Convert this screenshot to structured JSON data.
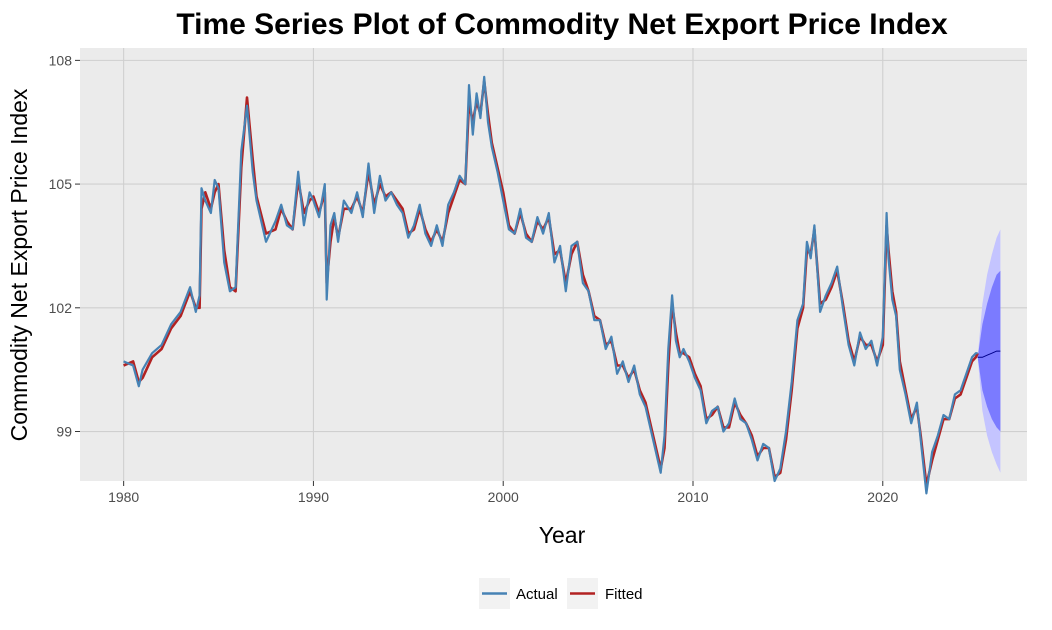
{
  "chart_data": {
    "type": "line",
    "title": "Time Series Plot of Commodity Net Export Price Index",
    "xlabel": "Year",
    "ylabel": "Commodity Net Export Price Index",
    "xlim": [
      1977.7,
      2027.6
    ],
    "ylim": [
      97.8,
      108.3
    ],
    "x_ticks": [
      1980,
      1990,
      2000,
      2010,
      2020
    ],
    "y_ticks": [
      99,
      102,
      105,
      108
    ],
    "grid": true,
    "legend": {
      "position": "bottom",
      "entries": [
        "Actual",
        "Fitted"
      ]
    },
    "colors": {
      "actual": "#4682b4",
      "fitted": "#b22222",
      "forecast_line": "#00008b",
      "band_inner": "#7b7bff",
      "band_outer": "#c4c4ff",
      "panel": "#ebebeb"
    },
    "series": [
      {
        "name": "Actual",
        "x": [
          1980.0,
          1980.5,
          1980.8,
          1981.0,
          1981.5,
          1982.0,
          1982.5,
          1983.0,
          1983.5,
          1983.8,
          1984.0,
          1984.1,
          1984.3,
          1984.6,
          1984.8,
          1985.0,
          1985.3,
          1985.6,
          1985.9,
          1986.2,
          1986.5,
          1986.8,
          1987.0,
          1987.5,
          1988.0,
          1988.3,
          1988.6,
          1988.9,
          1989.2,
          1989.5,
          1989.8,
          1990.0,
          1990.3,
          1990.6,
          1990.7,
          1990.9,
          1991.1,
          1991.3,
          1991.6,
          1992.0,
          1992.3,
          1992.6,
          1992.9,
          1993.2,
          1993.5,
          1993.8,
          1994.1,
          1994.4,
          1994.7,
          1995.0,
          1995.3,
          1995.6,
          1995.9,
          1996.2,
          1996.5,
          1996.8,
          1997.1,
          1997.4,
          1997.7,
          1998.0,
          1998.2,
          1998.4,
          1998.6,
          1998.8,
          1999.0,
          1999.2,
          1999.4,
          1999.7,
          2000.0,
          2000.3,
          2000.6,
          2000.9,
          2001.2,
          2001.5,
          2001.8,
          2002.1,
          2002.4,
          2002.7,
          2003.0,
          2003.3,
          2003.6,
          2003.9,
          2004.2,
          2004.5,
          2004.8,
          2005.1,
          2005.4,
          2005.7,
          2006.0,
          2006.3,
          2006.6,
          2006.9,
          2007.2,
          2007.5,
          2007.8,
          2008.1,
          2008.3,
          2008.5,
          2008.7,
          2008.9,
          2009.1,
          2009.3,
          2009.5,
          2009.8,
          2010.1,
          2010.4,
          2010.7,
          2011.0,
          2011.3,
          2011.6,
          2011.9,
          2012.2,
          2012.5,
          2012.8,
          2013.1,
          2013.4,
          2013.7,
          2014.0,
          2014.3,
          2014.6,
          2014.9,
          2015.2,
          2015.5,
          2015.8,
          2016.0,
          2016.2,
          2016.4,
          2016.7,
          2017.0,
          2017.3,
          2017.6,
          2017.9,
          2018.2,
          2018.5,
          2018.8,
          2019.1,
          2019.4,
          2019.7,
          2020.0,
          2020.2,
          2020.3,
          2020.5,
          2020.7,
          2020.9,
          2021.2,
          2021.5,
          2021.8,
          2022.0,
          2022.3,
          2022.6,
          2022.9,
          2023.2,
          2023.5,
          2023.8,
          2024.1,
          2024.4,
          2024.7,
          2024.9,
          2025.0
        ],
        "y": [
          100.7,
          100.6,
          100.1,
          100.5,
          100.9,
          101.1,
          101.6,
          101.9,
          102.5,
          101.9,
          102.3,
          104.9,
          104.6,
          104.3,
          105.1,
          104.9,
          103.1,
          102.4,
          102.5,
          105.8,
          106.9,
          105.3,
          104.6,
          103.6,
          104.1,
          104.5,
          104.0,
          103.9,
          105.3,
          104.0,
          104.8,
          104.6,
          104.2,
          105.0,
          102.2,
          104.0,
          104.3,
          103.6,
          104.6,
          104.3,
          104.8,
          104.2,
          105.5,
          104.3,
          105.2,
          104.6,
          104.8,
          104.5,
          104.3,
          103.7,
          104.0,
          104.5,
          103.8,
          103.5,
          104.0,
          103.5,
          104.5,
          104.8,
          105.2,
          105.0,
          107.4,
          106.2,
          107.2,
          106.6,
          107.6,
          106.5,
          105.9,
          105.3,
          104.6,
          103.9,
          103.8,
          104.4,
          103.7,
          103.6,
          104.2,
          103.8,
          104.3,
          103.1,
          103.5,
          102.4,
          103.5,
          103.6,
          102.6,
          102.4,
          101.7,
          101.7,
          101.0,
          101.3,
          100.4,
          100.7,
          100.2,
          100.6,
          99.9,
          99.6,
          99.0,
          98.4,
          98.0,
          98.9,
          101.0,
          102.3,
          101.2,
          100.8,
          101.0,
          100.7,
          100.3,
          100.0,
          99.2,
          99.5,
          99.6,
          99.0,
          99.2,
          99.8,
          99.3,
          99.2,
          98.8,
          98.3,
          98.7,
          98.6,
          97.8,
          98.1,
          99.0,
          100.2,
          101.7,
          102.1,
          103.6,
          103.2,
          104.0,
          101.9,
          102.3,
          102.6,
          103.0,
          102.0,
          101.1,
          100.6,
          101.4,
          101.0,
          101.2,
          100.6,
          101.3,
          104.3,
          103.2,
          102.2,
          101.8,
          100.5,
          99.9,
          99.2,
          99.7,
          98.8,
          97.5,
          98.5,
          98.9,
          99.4,
          99.3,
          99.9,
          100.0,
          100.4,
          100.8,
          100.9,
          100.9
        ]
      },
      {
        "name": "Fitted",
        "x": [
          1980.0,
          1980.5,
          1980.8,
          1981.0,
          1981.5,
          1982.0,
          1982.5,
          1983.0,
          1983.5,
          1983.8,
          1984.0,
          1984.1,
          1984.3,
          1984.6,
          1984.8,
          1985.0,
          1985.3,
          1985.6,
          1985.9,
          1986.2,
          1986.5,
          1986.8,
          1987.0,
          1987.5,
          1988.0,
          1988.3,
          1988.6,
          1988.9,
          1989.2,
          1989.5,
          1989.8,
          1990.0,
          1990.3,
          1990.6,
          1990.7,
          1990.9,
          1991.1,
          1991.3,
          1991.6,
          1992.0,
          1992.3,
          1992.6,
          1992.9,
          1993.2,
          1993.5,
          1993.8,
          1994.1,
          1994.4,
          1994.7,
          1995.0,
          1995.3,
          1995.6,
          1995.9,
          1996.2,
          1996.5,
          1996.8,
          1997.1,
          1997.4,
          1997.7,
          1998.0,
          1998.2,
          1998.4,
          1998.6,
          1998.8,
          1999.0,
          1999.2,
          1999.4,
          1999.7,
          2000.0,
          2000.3,
          2000.6,
          2000.9,
          2001.2,
          2001.5,
          2001.8,
          2002.1,
          2002.4,
          2002.7,
          2003.0,
          2003.3,
          2003.6,
          2003.9,
          2004.2,
          2004.5,
          2004.8,
          2005.1,
          2005.4,
          2005.7,
          2006.0,
          2006.3,
          2006.6,
          2006.9,
          2007.2,
          2007.5,
          2007.8,
          2008.1,
          2008.3,
          2008.5,
          2008.7,
          2008.9,
          2009.1,
          2009.3,
          2009.5,
          2009.8,
          2010.1,
          2010.4,
          2010.7,
          2011.0,
          2011.3,
          2011.6,
          2011.9,
          2012.2,
          2012.5,
          2012.8,
          2013.1,
          2013.4,
          2013.7,
          2014.0,
          2014.3,
          2014.6,
          2014.9,
          2015.2,
          2015.5,
          2015.8,
          2016.0,
          2016.2,
          2016.4,
          2016.7,
          2017.0,
          2017.3,
          2017.6,
          2017.9,
          2018.2,
          2018.5,
          2018.8,
          2019.1,
          2019.4,
          2019.7,
          2020.0,
          2020.2,
          2020.3,
          2020.5,
          2020.7,
          2020.9,
          2021.2,
          2021.5,
          2021.8,
          2022.0,
          2022.3,
          2022.6,
          2022.9,
          2023.2,
          2023.5,
          2023.8,
          2024.1,
          2024.4,
          2024.7,
          2024.9,
          2025.0
        ],
        "y": [
          100.6,
          100.7,
          100.2,
          100.3,
          100.8,
          101.0,
          101.5,
          101.8,
          102.4,
          102.0,
          102.0,
          104.4,
          104.8,
          104.4,
          104.8,
          105.0,
          103.4,
          102.5,
          102.4,
          105.4,
          107.1,
          105.6,
          104.7,
          103.8,
          103.9,
          104.4,
          104.1,
          103.9,
          105.1,
          104.3,
          104.6,
          104.7,
          104.3,
          104.8,
          102.6,
          103.6,
          104.2,
          103.7,
          104.4,
          104.4,
          104.7,
          104.3,
          105.3,
          104.5,
          105.0,
          104.7,
          104.8,
          104.6,
          104.4,
          103.8,
          103.9,
          104.4,
          103.9,
          103.6,
          103.9,
          103.6,
          104.3,
          104.7,
          105.1,
          105.0,
          107.0,
          106.5,
          107.0,
          106.7,
          107.5,
          106.7,
          106.0,
          105.4,
          104.8,
          104.0,
          103.8,
          104.3,
          103.8,
          103.6,
          104.1,
          103.9,
          104.2,
          103.3,
          103.4,
          102.6,
          103.3,
          103.6,
          102.8,
          102.4,
          101.8,
          101.7,
          101.1,
          101.2,
          100.6,
          100.6,
          100.3,
          100.5,
          100.0,
          99.7,
          99.1,
          98.5,
          98.1,
          98.6,
          100.6,
          102.1,
          101.4,
          100.9,
          100.9,
          100.8,
          100.4,
          100.1,
          99.3,
          99.4,
          99.6,
          99.1,
          99.1,
          99.7,
          99.4,
          99.2,
          98.9,
          98.4,
          98.6,
          98.6,
          97.9,
          98.0,
          98.8,
          100.0,
          101.5,
          102.0,
          103.4,
          103.3,
          103.9,
          102.1,
          102.2,
          102.5,
          102.9,
          102.1,
          101.2,
          100.7,
          101.3,
          101.1,
          101.1,
          100.7,
          101.1,
          104.0,
          103.4,
          102.4,
          101.9,
          100.7,
          100.0,
          99.3,
          99.6,
          98.9,
          97.7,
          98.3,
          98.8,
          99.3,
          99.3,
          99.8,
          99.9,
          100.3,
          100.7,
          100.8,
          100.9
        ]
      }
    ],
    "forecast": {
      "x": [
        2025.0,
        2025.25,
        2025.5,
        2025.75,
        2026.0,
        2026.2
      ],
      "mean": [
        100.8,
        100.8,
        100.85,
        100.9,
        100.95,
        100.95
      ],
      "lo80": [
        100.8,
        100.0,
        99.6,
        99.3,
        99.1,
        99.0
      ],
      "hi80": [
        100.8,
        101.6,
        102.1,
        102.5,
        102.8,
        102.9
      ],
      "lo95": [
        100.8,
        99.5,
        98.9,
        98.5,
        98.2,
        98.0
      ],
      "hi95": [
        100.8,
        102.1,
        102.8,
        103.3,
        103.7,
        103.9
      ]
    }
  }
}
